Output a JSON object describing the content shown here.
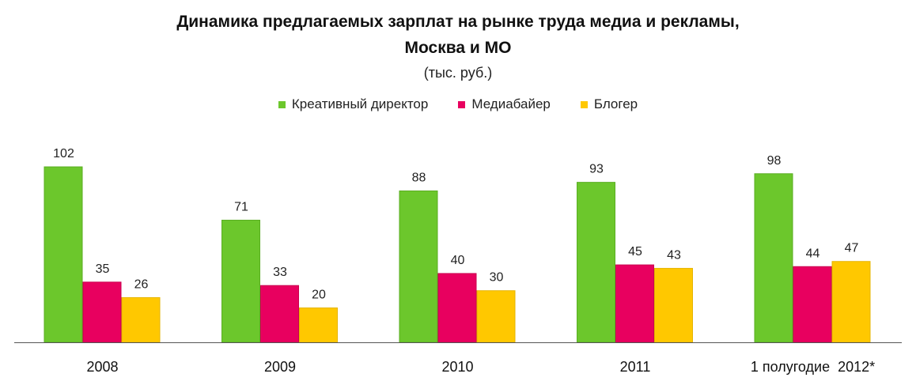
{
  "chart_data": {
    "type": "bar",
    "title_line1": "Динамика предлагаемых зарплат на рынке труда медиа и рекламы,",
    "title_line2": "Москва и МО",
    "subtitle": "(тыс. руб.)",
    "categories": [
      "2008",
      "2009",
      "2010",
      "2011",
      "1 полугодие  2012*"
    ],
    "series": [
      {
        "name": "Креативный директор",
        "color": "#6cc72c",
        "values": [
          102,
          71,
          88,
          93,
          98
        ]
      },
      {
        "name": "Медиабайер",
        "color": "#e8005f",
        "values": [
          35,
          33,
          40,
          45,
          44
        ]
      },
      {
        "name": "Блогер",
        "color": "#ffc800",
        "values": [
          26,
          20,
          30,
          43,
          47
        ]
      }
    ],
    "ylim": [
      0,
      110
    ],
    "grid": false,
    "legend_position": "top-center"
  }
}
